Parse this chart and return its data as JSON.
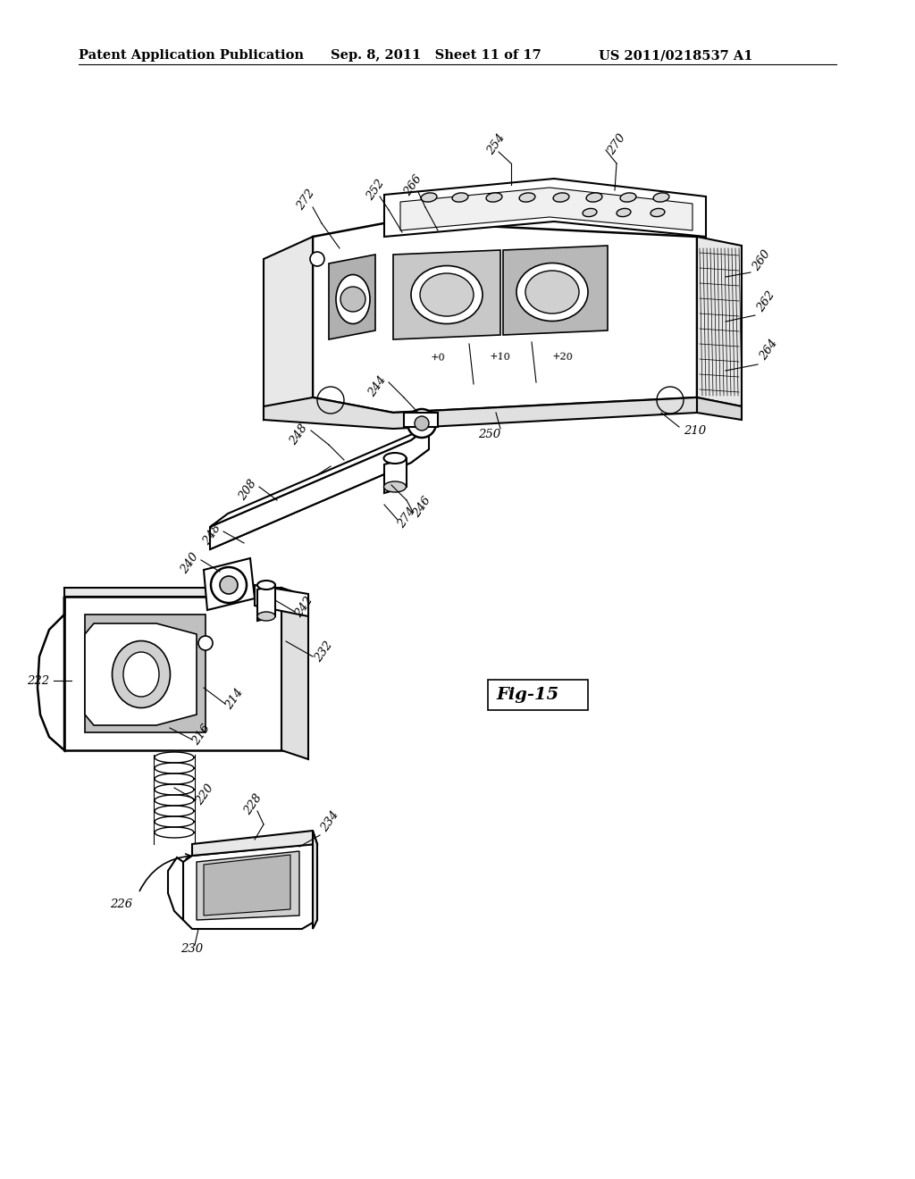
{
  "header_left": "Patent Application Publication",
  "header_center": "Sep. 8, 2011   Sheet 11 of 17",
  "header_right": "US 2011/0218537 A1",
  "figure_label": "Fig-15",
  "background_color": "#ffffff",
  "text_color": "#000000",
  "line_color": "#000000",
  "header_fontsize": 10.5,
  "fig_label_fontsize": 13,
  "ref_fontsize": 9.5,
  "lw_main": 1.5,
  "lw_thin": 0.8
}
